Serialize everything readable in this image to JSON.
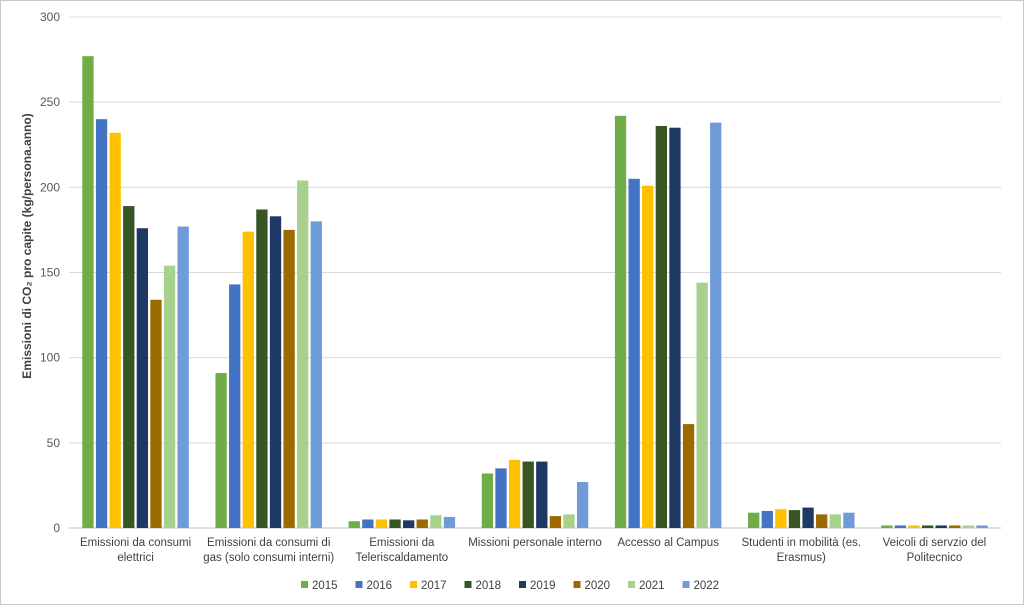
{
  "chart_data": {
    "type": "bar",
    "ylabel": "Emissioni di CO₂ pro capite (kg/persona.anno)",
    "ylim": [
      0,
      300
    ],
    "yticks": [
      0,
      50,
      100,
      150,
      200,
      250,
      300
    ],
    "grid": true,
    "legend_position": "bottom",
    "categories": [
      [
        "Emissioni da consumi",
        "elettrici"
      ],
      [
        "Emissioni da consumi di",
        "gas (solo consumi interni)"
      ],
      [
        "Emissioni da",
        "Teleriscaldamento"
      ],
      [
        "Missioni personale interno"
      ],
      [
        "Accesso al Campus"
      ],
      [
        "Studenti in mobilità (es.",
        "Erasmus)"
      ],
      [
        "Veicoli di servzio del",
        "Politecnico"
      ]
    ],
    "series": [
      {
        "name": "2015",
        "color": "#70ad47",
        "values": [
          277,
          91,
          4,
          32,
          242,
          9,
          1.5
        ]
      },
      {
        "name": "2016",
        "color": "#4472c4",
        "values": [
          240,
          143,
          5,
          35,
          205,
          10,
          1.5
        ]
      },
      {
        "name": "2017",
        "color": "#ffc000",
        "values": [
          232,
          174,
          5,
          40,
          201,
          11,
          1.5
        ]
      },
      {
        "name": "2018",
        "color": "#375623",
        "values": [
          189,
          187,
          5,
          39,
          236,
          10.5,
          1.5
        ]
      },
      {
        "name": "2019",
        "color": "#203864",
        "values": [
          176,
          183,
          4.5,
          39,
          235,
          12,
          1.5
        ]
      },
      {
        "name": "2020",
        "color": "#9c6b00",
        "values": [
          134,
          175,
          5,
          7,
          61,
          8,
          1.5
        ]
      },
      {
        "name": "2021",
        "color": "#a9d18e",
        "values": [
          154,
          204,
          7.5,
          8,
          144,
          8,
          1.5
        ]
      },
      {
        "name": "2022",
        "color": "#6f9bd8",
        "values": [
          177,
          180,
          6.5,
          27,
          238,
          9,
          1.5
        ]
      }
    ]
  }
}
